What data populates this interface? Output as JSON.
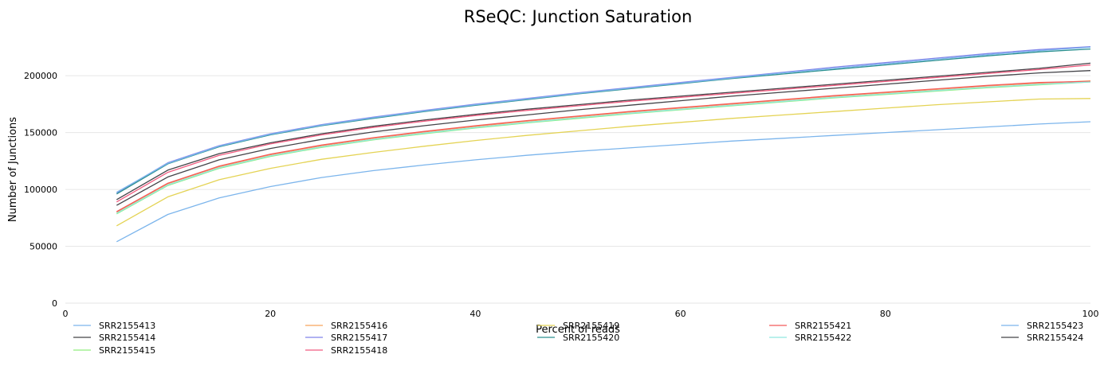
{
  "chart_data": {
    "type": "line",
    "title": "RSeQC: Junction Saturation",
    "xlabel": "Percent of reads",
    "ylabel": "Number of Junctions",
    "xlim": [
      0,
      100
    ],
    "ylim": [
      0,
      240000
    ],
    "xticks": [
      0,
      20,
      40,
      60,
      80,
      100
    ],
    "yticks": [
      0,
      50000,
      100000,
      150000,
      200000
    ],
    "grid": "horizontal",
    "legend": "bottom",
    "x": [
      5,
      10,
      15,
      20,
      25,
      30,
      35,
      40,
      45,
      50,
      55,
      60,
      65,
      70,
      75,
      80,
      85,
      90,
      95,
      100
    ],
    "series": [
      {
        "name": "SRR2155413",
        "color": "#7cb5ec",
        "values": [
          54000,
          78000,
          92500,
          102500,
          110500,
          116500,
          121500,
          126000,
          130000,
          133500,
          136500,
          139500,
          142500,
          145000,
          147500,
          150000,
          152500,
          155000,
          157500,
          159500
        ]
      },
      {
        "name": "SRR2155414",
        "color": "#434348",
        "values": [
          91000,
          117000,
          131500,
          141000,
          149000,
          155500,
          161000,
          166000,
          170500,
          174500,
          178500,
          182000,
          185500,
          189000,
          192500,
          196000,
          199500,
          203000,
          206500,
          211000
        ]
      },
      {
        "name": "SRR2155415",
        "color": "#90ed7d",
        "values": [
          78500,
          103500,
          118500,
          129000,
          137000,
          143500,
          149000,
          154000,
          158500,
          162500,
          166500,
          170000,
          173500,
          177000,
          180500,
          183500,
          186500,
          189500,
          192000,
          194500
        ]
      },
      {
        "name": "SRR2155416",
        "color": "#f7a35c",
        "values": [
          80000,
          105000,
          120000,
          130500,
          138500,
          145000,
          150500,
          155500,
          160000,
          164000,
          168000,
          171500,
          175000,
          178500,
          182000,
          185000,
          188000,
          191000,
          193500,
          195500
        ]
      },
      {
        "name": "SRR2155417",
        "color": "#8085e9",
        "values": [
          97000,
          123500,
          138500,
          149000,
          157000,
          163500,
          169500,
          175000,
          180000,
          185000,
          189500,
          194000,
          198500,
          203000,
          207500,
          211500,
          215500,
          219500,
          223000,
          225500
        ]
      },
      {
        "name": "SRR2155418",
        "color": "#f15c80",
        "values": [
          89000,
          115000,
          130000,
          140000,
          148000,
          154500,
          160000,
          165000,
          169500,
          173500,
          177500,
          181000,
          184500,
          188000,
          191500,
          195000,
          198500,
          202000,
          205500,
          209500
        ]
      },
      {
        "name": "SRR2155419",
        "color": "#e4d354",
        "values": [
          68000,
          93500,
          108500,
          118500,
          126500,
          132500,
          138000,
          143000,
          147500,
          151500,
          155500,
          159000,
          162500,
          165500,
          168500,
          171500,
          174500,
          177000,
          179500,
          180000
        ]
      },
      {
        "name": "SRR2155420",
        "color": "#2b908f",
        "values": [
          96000,
          122500,
          137500,
          148000,
          156000,
          162500,
          168500,
          174000,
          179000,
          184000,
          188500,
          193000,
          197500,
          201500,
          205500,
          209500,
          213500,
          217500,
          221000,
          223500
        ]
      },
      {
        "name": "SRR2155421",
        "color": "#f45b5b",
        "values": [
          80500,
          105500,
          120500,
          131000,
          139000,
          145500,
          151000,
          156000,
          160500,
          164500,
          168500,
          172000,
          175500,
          179000,
          182500,
          185500,
          188500,
          191500,
          194000,
          195000
        ]
      },
      {
        "name": "SRR2155422",
        "color": "#91e8e1",
        "values": [
          79000,
          104000,
          119000,
          129500,
          137500,
          144000,
          149500,
          154500,
          159000,
          163000,
          167000,
          170500,
          174000,
          177500,
          181000,
          184000,
          187000,
          190000,
          192500,
          194500
        ]
      },
      {
        "name": "SRR2155423",
        "color": "#7cb5ec",
        "values": [
          97500,
          123000,
          138000,
          148500,
          156500,
          163000,
          169000,
          174500,
          179500,
          184500,
          189000,
          193500,
          198000,
          202500,
          206500,
          210500,
          214500,
          218500,
          222000,
          225000
        ]
      },
      {
        "name": "SRR2155424",
        "color": "#434348",
        "values": [
          86000,
          111000,
          126000,
          136000,
          144000,
          150500,
          156000,
          161000,
          165500,
          170000,
          174000,
          178000,
          182000,
          185500,
          189000,
          192500,
          196000,
          199500,
          202500,
          204500
        ]
      }
    ]
  }
}
